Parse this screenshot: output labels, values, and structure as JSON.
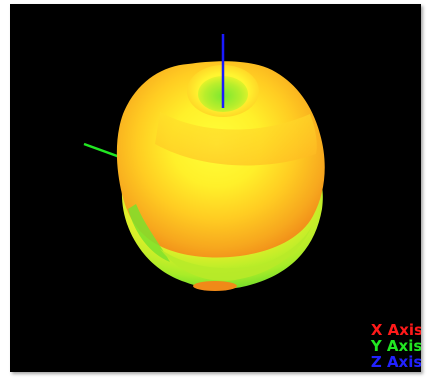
{
  "viewer": {
    "background_color": "#000000",
    "object": {
      "name": "apple-mesh",
      "colors": [
        "#ffff33",
        "#ffd020",
        "#f5a020",
        "#c8f025",
        "#60e030"
      ]
    },
    "axes": [
      {
        "label": "X Axis",
        "color": "#ff1a1a",
        "icon": "x-axis-line"
      },
      {
        "label": "Y Axis",
        "color": "#22e622",
        "icon": "y-axis-line"
      },
      {
        "label": "Z Axis",
        "color": "#2222ff",
        "icon": "z-axis-line"
      }
    ]
  }
}
